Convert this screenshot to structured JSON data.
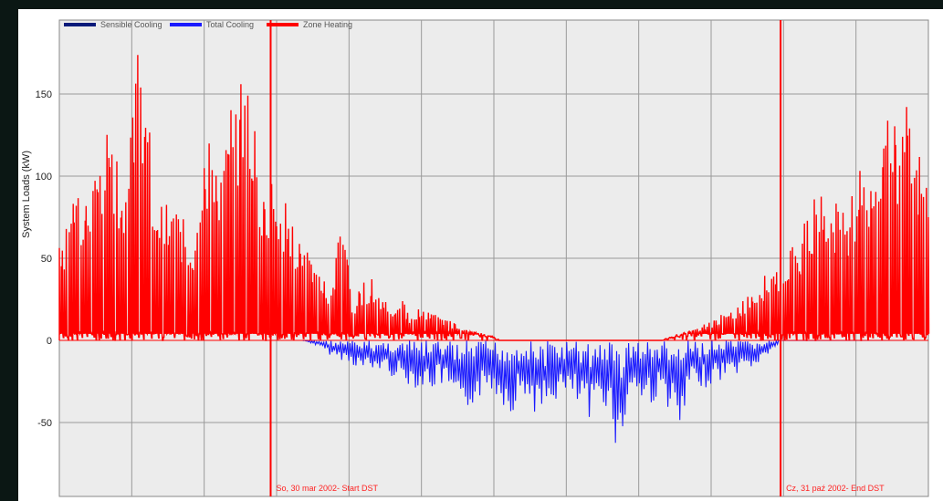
{
  "chart_data": {
    "type": "line",
    "title": "",
    "xlabel": "",
    "ylabel": "System Loads (kW)",
    "ylim": [
      -95,
      195
    ],
    "yticks": [
      -50,
      0,
      50,
      100,
      150
    ],
    "xlim": [
      0,
      8760
    ],
    "grid": true,
    "legend_position": "top-left",
    "colors": {
      "sensible": "#0a1a7a",
      "total": "#1a1aff",
      "heating": "#ff0000",
      "plot_bg": "#ececec",
      "grid": "#9a9a9a"
    },
    "series": [
      {
        "name": "Sensible Cooling",
        "color": "#0a1a7a"
      },
      {
        "name": "Total Cooling",
        "color": "#1a1aff"
      },
      {
        "name": "Zone Heating",
        "color": "#ff0000"
      }
    ],
    "heating_peaks": {
      "x": [
        50,
        150,
        250,
        350,
        450,
        550,
        650,
        750,
        850,
        950,
        1050,
        1150,
        1250,
        1350,
        1450,
        1550,
        1650,
        1750,
        1850,
        1950,
        2050,
        2150,
        2250,
        2350,
        2450,
        2550,
        2650,
        2750,
        2850,
        2950,
        3050,
        3150,
        3250,
        3350,
        3450,
        3550,
        3650,
        3750,
        3850,
        3950,
        4050,
        4150,
        4250,
        4350,
        4450,
        4550,
        4650,
        4750,
        4850,
        4950,
        5050,
        5150,
        5250,
        5350,
        5450,
        5550,
        5650,
        5750,
        5850,
        5950,
        6050,
        6150,
        6250,
        6350,
        6450,
        6550,
        6650,
        6750,
        6850,
        6950,
        7050,
        7150,
        7250,
        7350,
        7450,
        7550,
        7650,
        7750,
        7850,
        7950,
        8050,
        8150,
        8250,
        8350,
        8450,
        8550,
        8650,
        8750
      ],
      "y": [
        72,
        93,
        80,
        112,
        132,
        118,
        108,
        177,
        178,
        95,
        80,
        90,
        74,
        65,
        125,
        130,
        108,
        155,
        158,
        150,
        90,
        100,
        92,
        70,
        68,
        50,
        40,
        30,
        88,
        20,
        35,
        38,
        30,
        22,
        25,
        15,
        22,
        20,
        15,
        12,
        8,
        6,
        4,
        3,
        0,
        0,
        0,
        0,
        0,
        0,
        0,
        0,
        0,
        0,
        0,
        0,
        0,
        0,
        0,
        0,
        0,
        2,
        4,
        6,
        8,
        12,
        15,
        18,
        22,
        30,
        36,
        42,
        48,
        55,
        60,
        80,
        95,
        78,
        92,
        85,
        105,
        110,
        120,
        145,
        125,
        168,
        112,
        115
      ]
    },
    "cooling_troughs": {
      "x": [
        2450,
        2550,
        2650,
        2750,
        2850,
        2950,
        3050,
        3150,
        3250,
        3350,
        3450,
        3550,
        3650,
        3750,
        3850,
        3950,
        4050,
        4150,
        4250,
        4350,
        4450,
        4550,
        4650,
        4750,
        4850,
        4950,
        5050,
        5150,
        5250,
        5350,
        5450,
        5550,
        5650,
        5750,
        5850,
        5950,
        6050,
        6150,
        6250,
        6350,
        6450,
        6550,
        6650,
        6750,
        6850,
        6950,
        7050,
        7150,
        7250
      ],
      "y": [
        0,
        -2,
        -5,
        -10,
        -12,
        -15,
        -18,
        -20,
        -18,
        -22,
        -25,
        -28,
        -30,
        -30,
        -28,
        -35,
        -55,
        -40,
        -35,
        -30,
        -38,
        -45,
        -35,
        -38,
        -52,
        -40,
        -35,
        -38,
        -42,
        -55,
        -35,
        -45,
        -78,
        -30,
        -38,
        -40,
        -35,
        -42,
        -65,
        -32,
        -30,
        -28,
        -25,
        -22,
        -20,
        -18,
        -15,
        -8,
        -2
      ]
    },
    "dst_lines": [
      {
        "x": 2130,
        "label": "So, 30 mar 2002- Start DST"
      },
      {
        "x": 7270,
        "label": "Cz, 31 paź 2002- End DST"
      }
    ]
  }
}
